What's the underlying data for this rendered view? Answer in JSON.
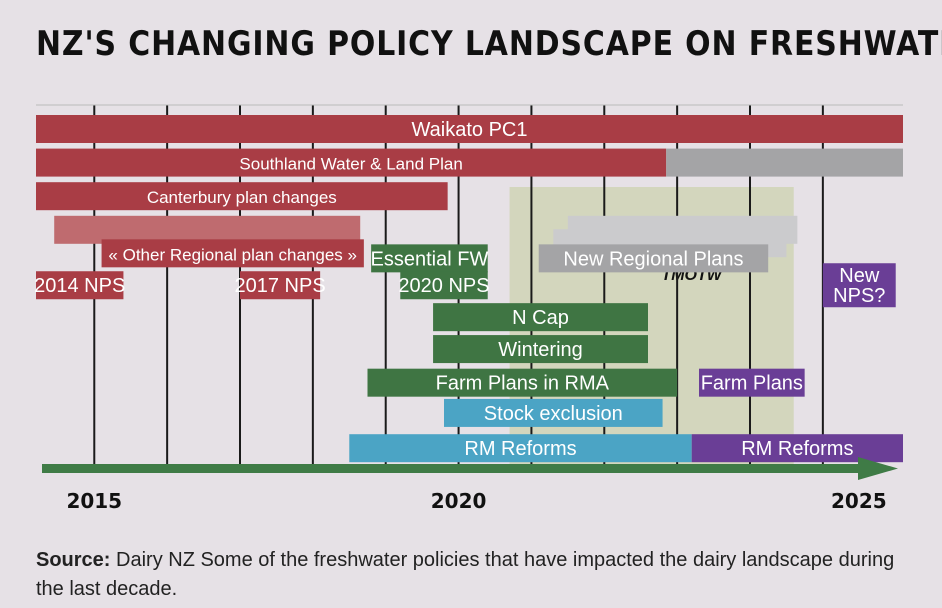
{
  "title": "NZ'S CHANGING POLICY LANDSCAPE ON FRESHWATER",
  "source_label": "Source:",
  "source_text": " Dairy NZ Some of the freshwater policies that have impacted the dairy landscape during the last decade.",
  "colors": {
    "background": "#e6e1e6",
    "regional": "#a93d45",
    "regional_light": "#bf6b6f",
    "national": "#3f7543",
    "stock": "#4ba4c5",
    "future": "#6a3e96",
    "future_plans": "#a4a4a6",
    "future_plans_light": "#cbcbcd",
    "period": "#d3d6bd",
    "axis": "#3f7b46",
    "gridline": "#1a1a1a"
  },
  "chart_data": {
    "type": "gantt",
    "x_axis": {
      "min": 2014.2,
      "max": 2026.1,
      "ticks": [
        2015,
        2020,
        2025
      ]
    },
    "gridlines": [
      2015,
      2016,
      2017,
      2018,
      2019,
      2020,
      2021,
      2022,
      2023,
      2024,
      2025
    ],
    "shaded_period": {
      "start": 2020.7,
      "end": 2024.6,
      "label": "TMOTW"
    },
    "bars": [
      {
        "label": "Waikato PC1",
        "start": 2014.2,
        "end": 2026.1,
        "lane": 0,
        "color": "regional",
        "text_color": "#ffffff"
      },
      {
        "label": "Southland Water &  Land Plan",
        "start": 2014.2,
        "end": 2022.85,
        "lane": 1,
        "color": "regional",
        "text_color": "#ffffff"
      },
      {
        "label": "",
        "start": 2022.85,
        "end": 2026.1,
        "lane": 1,
        "color": "future_plans",
        "text_color": "#ffffff"
      },
      {
        "label": "Canterbury plan changes",
        "start": 2014.2,
        "end": 2019.85,
        "lane": 2,
        "color": "regional",
        "text_color": "#ffffff"
      },
      {
        "label": "",
        "start": 2014.45,
        "end": 2018.65,
        "lane": 3,
        "color": "regional_light",
        "text_color": "#ffffff"
      },
      {
        "label": "« Other Regional plan changes »",
        "start": 2015.1,
        "end": 2018.7,
        "lane": 3.7,
        "color": "regional",
        "text_color": "#ffffff"
      },
      {
        "label": "",
        "start": 2021.5,
        "end": 2024.65,
        "lane": 3.0,
        "color": "future_plans_light",
        "text_color": "#ffffff"
      },
      {
        "label": "",
        "start": 2021.3,
        "end": 2024.5,
        "lane": 3.4,
        "color": "future_plans_light",
        "text_color": "#ffffff"
      },
      {
        "label": "New Regional Plans",
        "start": 2021.1,
        "end": 2024.25,
        "lane": 3.85,
        "color": "future_plans",
        "text_color": "#ffffff"
      },
      {
        "label": "Essential FW",
        "start": 2018.8,
        "end": 2020.4,
        "lane": 3.85,
        "color": "national",
        "text_color": "#ffffff"
      },
      {
        "label": "2014 NPS",
        "start": 2014.2,
        "end": 2015.4,
        "lane": 4.65,
        "color": "regional",
        "text_color": "#ffffff"
      },
      {
        "label": "2017 NPS",
        "start": 2017.0,
        "end": 2018.1,
        "lane": 4.65,
        "color": "regional",
        "text_color": "#ffffff"
      },
      {
        "label": "2020 NPS",
        "start": 2019.2,
        "end": 2020.4,
        "lane": 4.65,
        "color": "national",
        "text_color": "#ffffff"
      },
      {
        "label": "New\nNPS?",
        "start": 2025.0,
        "end": 2026.0,
        "lane": 4.65,
        "color": "future",
        "text_color": "#ffffff"
      },
      {
        "label": "N Cap",
        "start": 2019.65,
        "end": 2022.6,
        "lane": 5.6,
        "color": "national",
        "text_color": "#ffffff"
      },
      {
        "label": "Wintering",
        "start": 2019.65,
        "end": 2022.6,
        "lane": 6.55,
        "color": "national",
        "text_color": "#ffffff"
      },
      {
        "label": "Farm Plans in RMA",
        "start": 2018.75,
        "end": 2023.0,
        "lane": 7.55,
        "color": "national",
        "text_color": "#ffffff"
      },
      {
        "label": "Farm Plans",
        "start": 2023.3,
        "end": 2024.75,
        "lane": 7.55,
        "color": "future",
        "text_color": "#ffffff"
      },
      {
        "label": "Stock exclusion",
        "start": 2019.8,
        "end": 2022.8,
        "lane": 8.45,
        "color": "stock",
        "text_color": "#ffffff"
      },
      {
        "label": "RM Reforms",
        "start": 2018.5,
        "end": 2023.2,
        "lane": 9.5,
        "color": "stock",
        "text_color": "#ffffff"
      },
      {
        "label": "RM Reforms",
        "start": 2023.2,
        "end": 2026.1,
        "lane": 9.5,
        "color": "future",
        "text_color": "#ffffff"
      }
    ]
  }
}
